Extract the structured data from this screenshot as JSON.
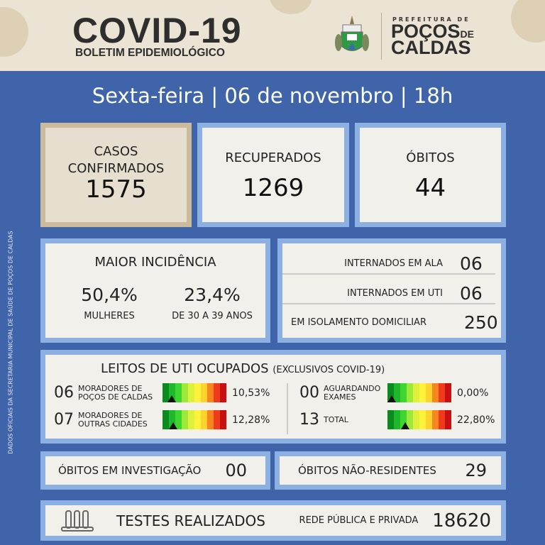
{
  "header": {
    "title": "COVID-19",
    "subtitle": "BOLETIM EPIDEMIOLÓGICO",
    "prefeitura": "PREFEITURA DE",
    "city_line1": "POÇOS",
    "city_de": "DE",
    "city_line2": "CALDAS"
  },
  "date_line": "Sexta-feira | 06 de novembro | 18h",
  "side_note": "DADOS OFICIAIS DA SECRETARIA MUNICIPAL DE SAÚDE DE POÇOS DE CALDAS",
  "totals": [
    {
      "label": "CASOS CONFIRMADOS",
      "value": "1575"
    },
    {
      "label": "RECUPERADOS",
      "value": "1269"
    },
    {
      "label": "ÓBITOS",
      "value": "44"
    }
  ],
  "incidence": {
    "title": "MAIOR INCIDÊNCIA",
    "items": [
      {
        "value": "50,4%",
        "label": "MULHERES"
      },
      {
        "value": "23,4%",
        "label": "DE 30 A 39 ANOS"
      }
    ]
  },
  "hospital": [
    {
      "label": "INTERNADOS EM ALA",
      "value": "06"
    },
    {
      "label": "INTERNADOS EM UTI",
      "value": "06"
    },
    {
      "label": "EM ISOLAMENTO DOMICILIAR",
      "value": "250"
    }
  ],
  "uti": {
    "title": "LEITOS DE UTI OCUPADOS",
    "note": "(EXCLUSIVOS COVID-19)",
    "gauge_colors": [
      "#0b8a1e",
      "#1fb82a",
      "#3fd52f",
      "#9ee83a",
      "#dff03c",
      "#fff23a",
      "#ffd22e",
      "#f7861f",
      "#ef3b1c",
      "#c80f12"
    ],
    "rows": [
      {
        "count": "06",
        "label1": "MORADORES DE",
        "label2": "POÇOS DE CALDAS",
        "percent": "10,53%",
        "level": 10.53
      },
      {
        "count": "07",
        "label1": "MORADORES DE",
        "label2": "OUTRAS CIDADES",
        "percent": "12,28%",
        "level": 12.28
      },
      {
        "count": "00",
        "label1": "AGUARDANDO",
        "label2": "EXAMES",
        "percent": "0,00%",
        "level": 0
      },
      {
        "count": "13",
        "label1": "TOTAL",
        "label2": "",
        "percent": "22,80%",
        "level": 22.8
      }
    ]
  },
  "deaths_investigation": {
    "label": "ÓBITOS EM INVESTIGAÇÃO",
    "value": "00"
  },
  "deaths_nonresident": {
    "label": "ÓBITOS NÃO-RESIDENTES",
    "value": "29"
  },
  "tests": {
    "label": "TESTES REALIZADOS",
    "sub": "REDE PÚBLICA E PRIVADA",
    "value": "18620",
    "icon": "test-tubes-icon"
  }
}
